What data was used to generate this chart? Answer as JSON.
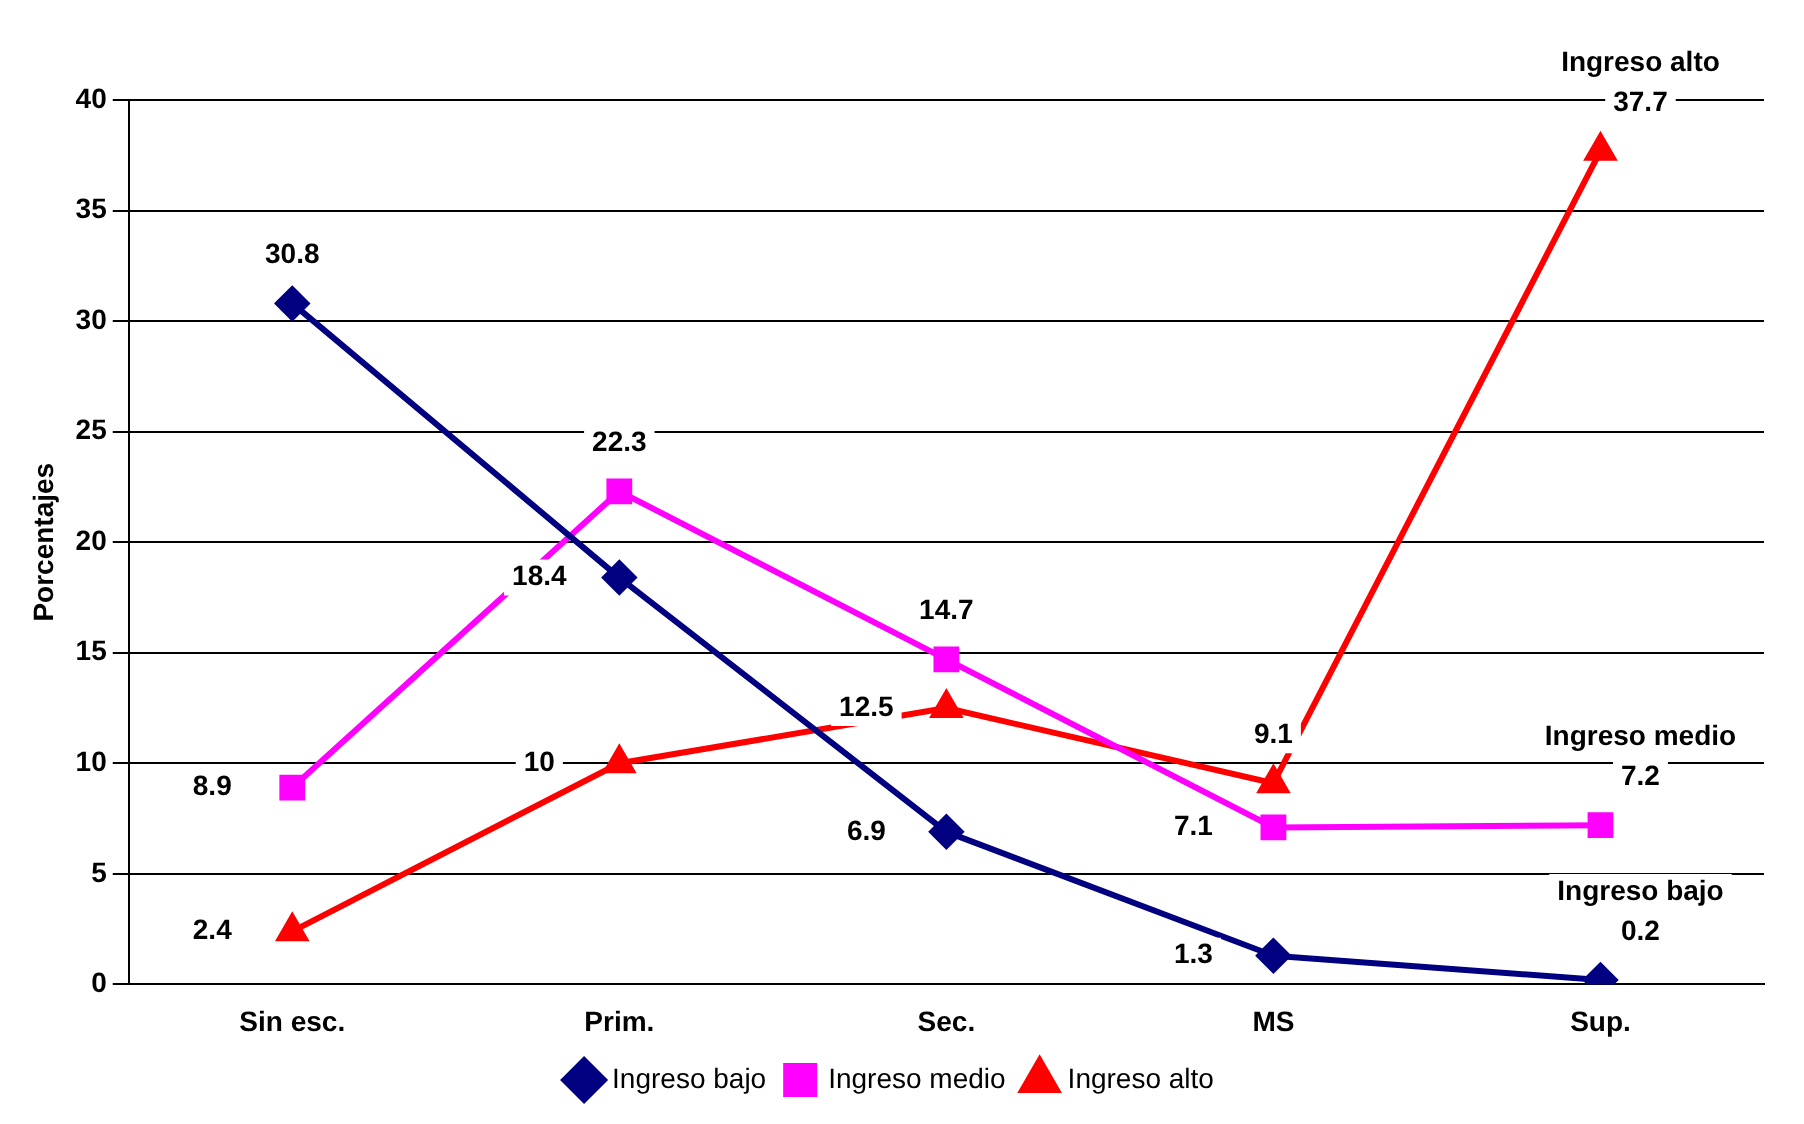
{
  "chart_data": {
    "type": "line",
    "ylabel": "Porcentajes",
    "categories": [
      "Sin esc.",
      "Prim.",
      "Sec.",
      "MS",
      "Sup."
    ],
    "series": [
      {
        "name": "Ingreso bajo",
        "color": "#000080",
        "marker": "diamond",
        "values": [
          30.8,
          18.4,
          6.9,
          1.3,
          0.2
        ]
      },
      {
        "name": "Ingreso medio",
        "color": "#ff00ff",
        "marker": "square",
        "values": [
          8.9,
          22.3,
          14.7,
          7.1,
          7.2
        ]
      },
      {
        "name": "Ingreso alto",
        "color": "#ff0000",
        "marker": "triangle",
        "values": [
          2.4,
          10,
          12.5,
          9.1,
          37.7
        ]
      }
    ],
    "ylim": [
      0,
      40
    ],
    "yticks": [
      0,
      5,
      10,
      15,
      20,
      25,
      30,
      35,
      40
    ],
    "grid": "y",
    "legend": "bottom",
    "data_labels": true
  }
}
